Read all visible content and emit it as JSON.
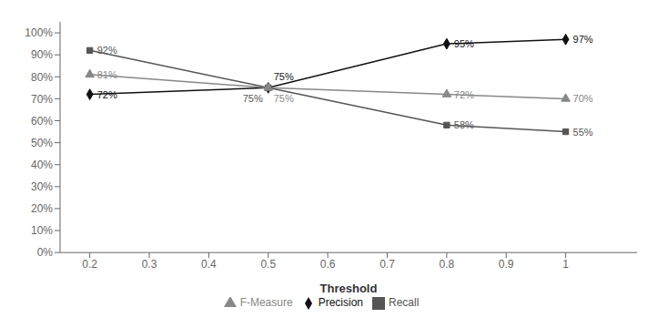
{
  "chart_data": {
    "type": "line",
    "x": [
      0.2,
      0.5,
      0.8,
      1.0
    ],
    "xlabel": "Threshold",
    "xlim": [
      0.15,
      1.12
    ],
    "ylim": [
      0.0,
      1.05
    ],
    "xticks": [
      0.2,
      0.3,
      0.4,
      0.5,
      0.6,
      0.7,
      0.8,
      0.9,
      1
    ],
    "yticks": [
      {
        "value": 0.0,
        "label": "0%"
      },
      {
        "value": 0.1,
        "label": "10%"
      },
      {
        "value": 0.2,
        "label": "20%"
      },
      {
        "value": 0.3,
        "label": "30%"
      },
      {
        "value": 0.4,
        "label": "40%"
      },
      {
        "value": 0.5,
        "label": "50%"
      },
      {
        "value": 0.6,
        "label": "60%"
      },
      {
        "value": 0.7,
        "label": "70%"
      },
      {
        "value": 0.8,
        "label": "80%"
      },
      {
        "value": 0.9,
        "label": "90%"
      },
      {
        "value": 1.0,
        "label": "100%"
      }
    ],
    "grid": false,
    "legend": "bottom",
    "data_labels": true,
    "series": [
      {
        "name": "Precision",
        "color": "#111111",
        "marker": "diamond",
        "line_style": "solid",
        "values": [
          0.72,
          0.75,
          0.95,
          0.97
        ],
        "value_labels": [
          "72%",
          "75%",
          "95%",
          "97%"
        ]
      },
      {
        "name": "Recall",
        "color": "#555555",
        "marker": "square",
        "line_style": "solid",
        "values": [
          0.92,
          0.75,
          0.58,
          0.55
        ],
        "value_labels": [
          "92%",
          "75%",
          "58%",
          "55%"
        ]
      },
      {
        "name": "F-Measure",
        "color": "#888888",
        "marker": "triangle",
        "line_style": "solid",
        "values": [
          0.81,
          0.75,
          0.72,
          0.7
        ],
        "value_labels": [
          "81%",
          "75%",
          "72%",
          "70%"
        ]
      }
    ]
  }
}
